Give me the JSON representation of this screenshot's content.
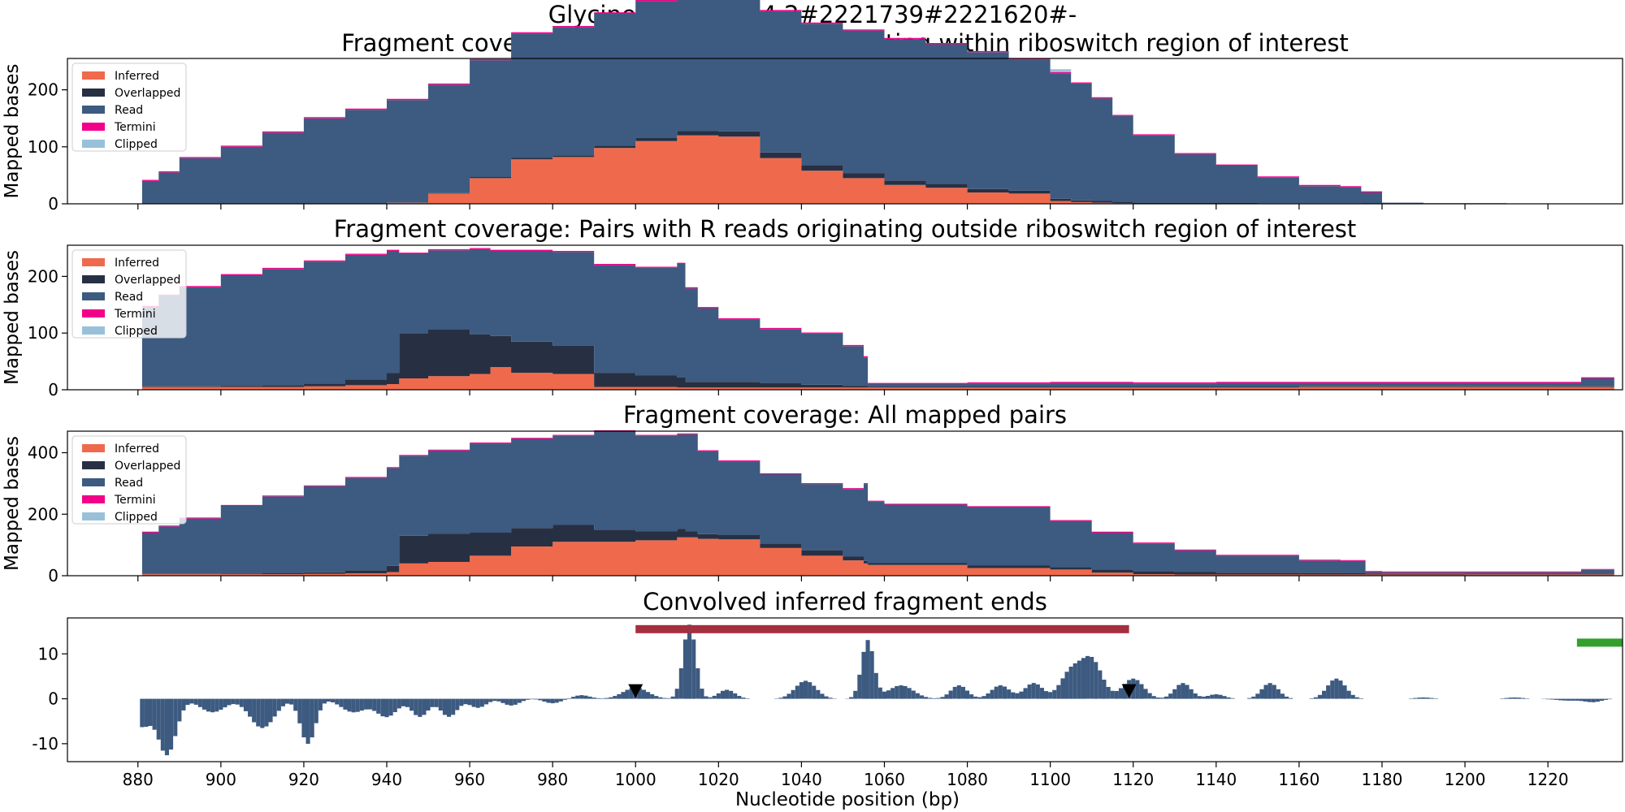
{
  "figure": {
    "suptitle": "Glycine#AE017334.2#2221739#2221620#-",
    "xlabel": "Nucleotide position (bp)",
    "x_ticks": [
      880,
      900,
      920,
      940,
      960,
      980,
      1000,
      1020,
      1040,
      1060,
      1080,
      1100,
      1120,
      1140,
      1160,
      1180,
      1200,
      1220
    ]
  },
  "legend": [
    {
      "label": "Inferred",
      "color": "#ef6a4c"
    },
    {
      "label": "Overlapped",
      "color": "#273043"
    },
    {
      "label": "Read",
      "color": "#3d5a80"
    },
    {
      "label": "Termini",
      "color": "#f20089"
    },
    {
      "label": "Clipped",
      "color": "#98c1d9"
    }
  ],
  "chart_data": [
    {
      "type": "area",
      "title": "Fragment coverage: Pairs with R reads originating within riboswitch region of interest",
      "xlabel": "",
      "ylabel": "Mapped bases",
      "xlim": [
        863,
        1238
      ],
      "ylim": [
        0,
        255
      ],
      "yticks": [
        0,
        100,
        200
      ],
      "legend_position": "top-left",
      "x": [
        881,
        885,
        890,
        900,
        910,
        920,
        930,
        940,
        950,
        960,
        970,
        980,
        990,
        1000,
        1010,
        1020,
        1030,
        1040,
        1050,
        1060,
        1070,
        1080,
        1090,
        1100,
        1105,
        1110,
        1115,
        1120,
        1130,
        1140,
        1150,
        1160,
        1170,
        1175,
        1180,
        1190,
        1200,
        1210,
        1220,
        1236
      ],
      "series": [
        {
          "name": "Inferred",
          "values": [
            0,
            0,
            0,
            0,
            0,
            0,
            0,
            2,
            18,
            45,
            78,
            82,
            98,
            110,
            120,
            118,
            80,
            58,
            45,
            33,
            28,
            20,
            18,
            5,
            3,
            2,
            1,
            0,
            0,
            0,
            0,
            0,
            0,
            0,
            0,
            0,
            0,
            0,
            0,
            0
          ]
        },
        {
          "name": "Overlapped",
          "values": [
            0,
            0,
            0,
            0,
            0,
            0,
            0,
            0,
            1,
            2,
            3,
            3,
            4,
            6,
            8,
            9,
            10,
            10,
            9,
            8,
            7,
            6,
            5,
            4,
            3,
            3,
            3,
            2,
            2,
            2,
            1,
            1,
            1,
            0,
            0,
            0,
            0,
            0,
            0,
            0
          ]
        },
        {
          "name": "Read",
          "values": [
            40,
            55,
            80,
            100,
            125,
            150,
            165,
            180,
            190,
            205,
            218,
            225,
            232,
            240,
            242,
            244,
            248,
            248,
            250,
            248,
            245,
            240,
            230,
            220,
            205,
            180,
            150,
            118,
            85,
            65,
            45,
            30,
            28,
            20,
            2,
            1,
            1,
            0,
            0,
            0
          ]
        },
        {
          "name": "Termini",
          "values": [
            2,
            2,
            2,
            2,
            2,
            2,
            2,
            2,
            2,
            2,
            2,
            2,
            2,
            2,
            2,
            2,
            2,
            2,
            2,
            2,
            2,
            2,
            2,
            2,
            2,
            2,
            2,
            2,
            2,
            2,
            2,
            2,
            2,
            2,
            0,
            0,
            0,
            0,
            0,
            0
          ]
        },
        {
          "name": "Clipped",
          "values": [
            0,
            0,
            0,
            0,
            0,
            0,
            0,
            0,
            0,
            0,
            0,
            0,
            0,
            0,
            0,
            0,
            0,
            0,
            0,
            0,
            0,
            0,
            0,
            5,
            0,
            0,
            0,
            0,
            0,
            0,
            0,
            0,
            0,
            0,
            0,
            0,
            0,
            0,
            0,
            0
          ]
        }
      ]
    },
    {
      "type": "area",
      "title": "Fragment coverage: Pairs with R reads originating outside riboswitch region of interest",
      "xlabel": "",
      "ylabel": "Mapped bases",
      "xlim": [
        863,
        1238
      ],
      "ylim": [
        0,
        255
      ],
      "yticks": [
        0,
        100,
        200
      ],
      "legend_position": "top-left",
      "x": [
        881,
        885,
        890,
        900,
        910,
        920,
        930,
        940,
        943,
        950,
        960,
        965,
        970,
        980,
        990,
        1000,
        1010,
        1012,
        1015,
        1020,
        1030,
        1040,
        1050,
        1055,
        1056,
        1060,
        1080,
        1100,
        1120,
        1140,
        1160,
        1180,
        1200,
        1220,
        1228,
        1236
      ],
      "series": [
        {
          "name": "Inferred",
          "values": [
            5,
            5,
            5,
            5,
            5,
            6,
            8,
            10,
            20,
            24,
            28,
            40,
            30,
            28,
            5,
            5,
            4,
            4,
            4,
            4,
            4,
            4,
            4,
            4,
            4,
            4,
            4,
            4,
            4,
            4,
            5,
            5,
            5,
            5,
            5,
            5
          ]
        },
        {
          "name": "Overlapped",
          "values": [
            1,
            1,
            1,
            2,
            3,
            5,
            10,
            20,
            80,
            82,
            70,
            55,
            55,
            50,
            25,
            20,
            18,
            10,
            10,
            10,
            8,
            5,
            3,
            3,
            1,
            1,
            1,
            1,
            1,
            1,
            1,
            1,
            1,
            1,
            1,
            1
          ]
        },
        {
          "name": "Read",
          "values": [
            140,
            160,
            175,
            195,
            205,
            215,
            220,
            215,
            140,
            140,
            150,
            150,
            160,
            165,
            190,
            190,
            200,
            165,
            130,
            110,
            95,
            90,
            70,
            50,
            5,
            5,
            6,
            7,
            6,
            7,
            6,
            6,
            6,
            6,
            14,
            14
          ]
        },
        {
          "name": "Termini",
          "values": [
            2,
            2,
            2,
            2,
            2,
            2,
            2,
            2,
            2,
            2,
            2,
            2,
            2,
            2,
            2,
            2,
            2,
            2,
            2,
            2,
            2,
            2,
            2,
            2,
            2,
            2,
            2,
            2,
            2,
            2,
            2,
            2,
            2,
            2,
            2,
            2
          ]
        },
        {
          "name": "Clipped",
          "values": [
            0,
            0,
            0,
            0,
            0,
            0,
            0,
            0,
            0,
            0,
            0,
            0,
            0,
            0,
            0,
            0,
            0,
            0,
            0,
            0,
            0,
            0,
            0,
            0,
            0,
            0,
            0,
            0,
            0,
            0,
            0,
            0,
            0,
            0,
            0,
            0
          ]
        }
      ]
    },
    {
      "type": "area",
      "title": "Fragment coverage: All mapped pairs",
      "xlabel": "",
      "ylabel": "Mapped bases",
      "xlim": [
        863,
        1238
      ],
      "ylim": [
        0,
        470
      ],
      "yticks": [
        0,
        200,
        400
      ],
      "legend_position": "top-left",
      "x": [
        881,
        885,
        890,
        900,
        910,
        920,
        930,
        940,
        943,
        950,
        960,
        970,
        980,
        990,
        1000,
        1010,
        1012,
        1015,
        1020,
        1030,
        1040,
        1050,
        1055,
        1056,
        1060,
        1080,
        1100,
        1110,
        1120,
        1130,
        1140,
        1160,
        1170,
        1176,
        1180,
        1200,
        1220,
        1228,
        1236
      ],
      "series": [
        {
          "name": "Inferred",
          "values": [
            5,
            5,
            5,
            5,
            5,
            6,
            8,
            12,
            40,
            45,
            65,
            95,
            110,
            110,
            115,
            125,
            125,
            120,
            118,
            90,
            65,
            50,
            40,
            35,
            35,
            25,
            20,
            10,
            5,
            4,
            4,
            4,
            4,
            4,
            4,
            4,
            4,
            4,
            5
          ]
        },
        {
          "name": "Overlapped",
          "values": [
            1,
            1,
            1,
            2,
            3,
            5,
            10,
            20,
            90,
            92,
            75,
            60,
            55,
            40,
            30,
            28,
            20,
            15,
            14,
            15,
            18,
            12,
            8,
            6,
            6,
            8,
            8,
            10,
            10,
            8,
            6,
            5,
            4,
            3,
            2,
            1,
            1,
            1,
            1
          ]
        },
        {
          "name": "Read",
          "values": [
            134,
            154,
            180,
            220,
            250,
            280,
            300,
            318,
            260,
            270,
            290,
            290,
            290,
            320,
            310,
            307,
            315,
            270,
            240,
            225,
            215,
            220,
            250,
            200,
            190,
            190,
            150,
            120,
            90,
            70,
            55,
            40,
            40,
            5,
            5,
            6,
            6,
            14,
            14
          ]
        },
        {
          "name": "Termini",
          "values": [
            3,
            3,
            3,
            3,
            3,
            3,
            3,
            3,
            3,
            3,
            3,
            3,
            3,
            3,
            3,
            3,
            3,
            3,
            3,
            3,
            3,
            3,
            3,
            3,
            3,
            3,
            3,
            3,
            3,
            3,
            3,
            3,
            3,
            3,
            3,
            3,
            3,
            3,
            3
          ]
        },
        {
          "name": "Clipped",
          "values": [
            0,
            0,
            0,
            0,
            0,
            0,
            0,
            0,
            0,
            0,
            0,
            0,
            0,
            0,
            0,
            0,
            0,
            0,
            0,
            0,
            0,
            0,
            0,
            0,
            0,
            0,
            0,
            0,
            0,
            0,
            0,
            0,
            0,
            0,
            0,
            0,
            0,
            0,
            0
          ]
        }
      ]
    },
    {
      "type": "bar",
      "title": "Convolved inferred fragment ends",
      "xlabel": "Nucleotide position (bp)",
      "ylabel": "",
      "xlim": [
        863,
        1238
      ],
      "ylim": [
        -14,
        18
      ],
      "yticks": [
        -10,
        0,
        10
      ],
      "color": "#3d5a80",
      "peaks": [
        {
          "center": 881,
          "width": 2,
          "height": -6
        },
        {
          "center": 887,
          "width": 2.2,
          "height": -12.5
        },
        {
          "center": 898,
          "width": 3,
          "height": -3
        },
        {
          "center": 910,
          "width": 3,
          "height": -6.5
        },
        {
          "center": 921,
          "width": 1.8,
          "height": -10
        },
        {
          "center": 932,
          "width": 3,
          "height": -3
        },
        {
          "center": 940,
          "width": 2.5,
          "height": -4
        },
        {
          "center": 948,
          "width": 2,
          "height": -4
        },
        {
          "center": 955,
          "width": 2,
          "height": -4
        },
        {
          "center": 962,
          "width": 2,
          "height": -2
        },
        {
          "center": 970,
          "width": 2,
          "height": -1.5
        },
        {
          "center": 980,
          "width": 2,
          "height": -1
        },
        {
          "center": 987,
          "width": 2,
          "height": 0.8
        },
        {
          "center": 1000,
          "width": 3,
          "height": 2.5
        },
        {
          "center": 1013,
          "width": 1.5,
          "height": 16.5
        },
        {
          "center": 1022,
          "width": 2,
          "height": 2
        },
        {
          "center": 1041,
          "width": 2.5,
          "height": 4
        },
        {
          "center": 1056,
          "width": 1.5,
          "height": 13
        },
        {
          "center": 1064,
          "width": 3,
          "height": 3
        },
        {
          "center": 1078,
          "width": 2,
          "height": 3
        },
        {
          "center": 1088,
          "width": 2.2,
          "height": 3
        },
        {
          "center": 1096,
          "width": 2.2,
          "height": 3.5
        },
        {
          "center": 1105,
          "width": 2.5,
          "height": 6
        },
        {
          "center": 1110,
          "width": 2.5,
          "height": 8.5
        },
        {
          "center": 1120,
          "width": 2.5,
          "height": 4.5
        },
        {
          "center": 1132,
          "width": 2,
          "height": 3.5
        },
        {
          "center": 1140,
          "width": 2,
          "height": 1
        },
        {
          "center": 1153,
          "width": 2,
          "height": 3.5
        },
        {
          "center": 1169,
          "width": 2.2,
          "height": 4.5
        },
        {
          "center": 1190,
          "width": 2,
          "height": 0.3
        },
        {
          "center": 1212,
          "width": 2,
          "height": 0.3
        },
        {
          "center": 1225,
          "width": 3,
          "height": -0.4
        },
        {
          "center": 1231,
          "width": 2,
          "height": -0.7
        }
      ],
      "annotations": [
        {
          "kind": "segment",
          "x_start": 1000,
          "x_end": 1119,
          "y": 15.5,
          "color": "#a4303f"
        },
        {
          "kind": "segment",
          "x_start": 1227,
          "x_end": 1238,
          "y": 12.5,
          "color": "#33a02c"
        },
        {
          "kind": "marker",
          "shape": "triangle-down",
          "x": 1000,
          "y": 1.8,
          "color": "#000000"
        },
        {
          "kind": "marker",
          "shape": "triangle-down",
          "x": 1119,
          "y": 1.8,
          "color": "#000000"
        }
      ]
    }
  ]
}
